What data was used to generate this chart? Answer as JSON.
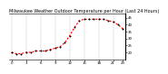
{
  "title": "Milwaukee Weather Outdoor Temperature per Hour (Last 24 Hours)",
  "hours": [
    0,
    1,
    2,
    3,
    4,
    5,
    6,
    7,
    8,
    9,
    10,
    11,
    12,
    13,
    14,
    15,
    16,
    17,
    18,
    19,
    20,
    21,
    22,
    23
  ],
  "temps": [
    20,
    19,
    19,
    20,
    20,
    21,
    21,
    21,
    22,
    23,
    24,
    27,
    32,
    38,
    43,
    44,
    44,
    44,
    44,
    44,
    43,
    42,
    40,
    37
  ],
  "line_color": "#ff0000",
  "marker_color": "#000000",
  "bg_color": "#ffffff",
  "plot_bg": "#ffffff",
  "grid_color": "#888888",
  "ylim": [
    15,
    48
  ],
  "yticks": [
    20,
    25,
    30,
    35,
    40,
    45
  ],
  "ytick_labels": [
    "20",
    "25",
    "30",
    "35",
    "40",
    "45"
  ],
  "xtick_positions": [
    0,
    3,
    6,
    9,
    12,
    15,
    18,
    21,
    23
  ],
  "xtick_labels": [
    "0",
    "3",
    "6",
    "9",
    "12",
    "15",
    "18",
    "21",
    "23"
  ],
  "grid_positions": [
    0,
    3,
    6,
    9,
    12,
    15,
    18,
    21
  ],
  "title_fontsize": 3.5,
  "tick_fontsize": 2.8,
  "line_width": 0.8,
  "marker_size": 2.0
}
